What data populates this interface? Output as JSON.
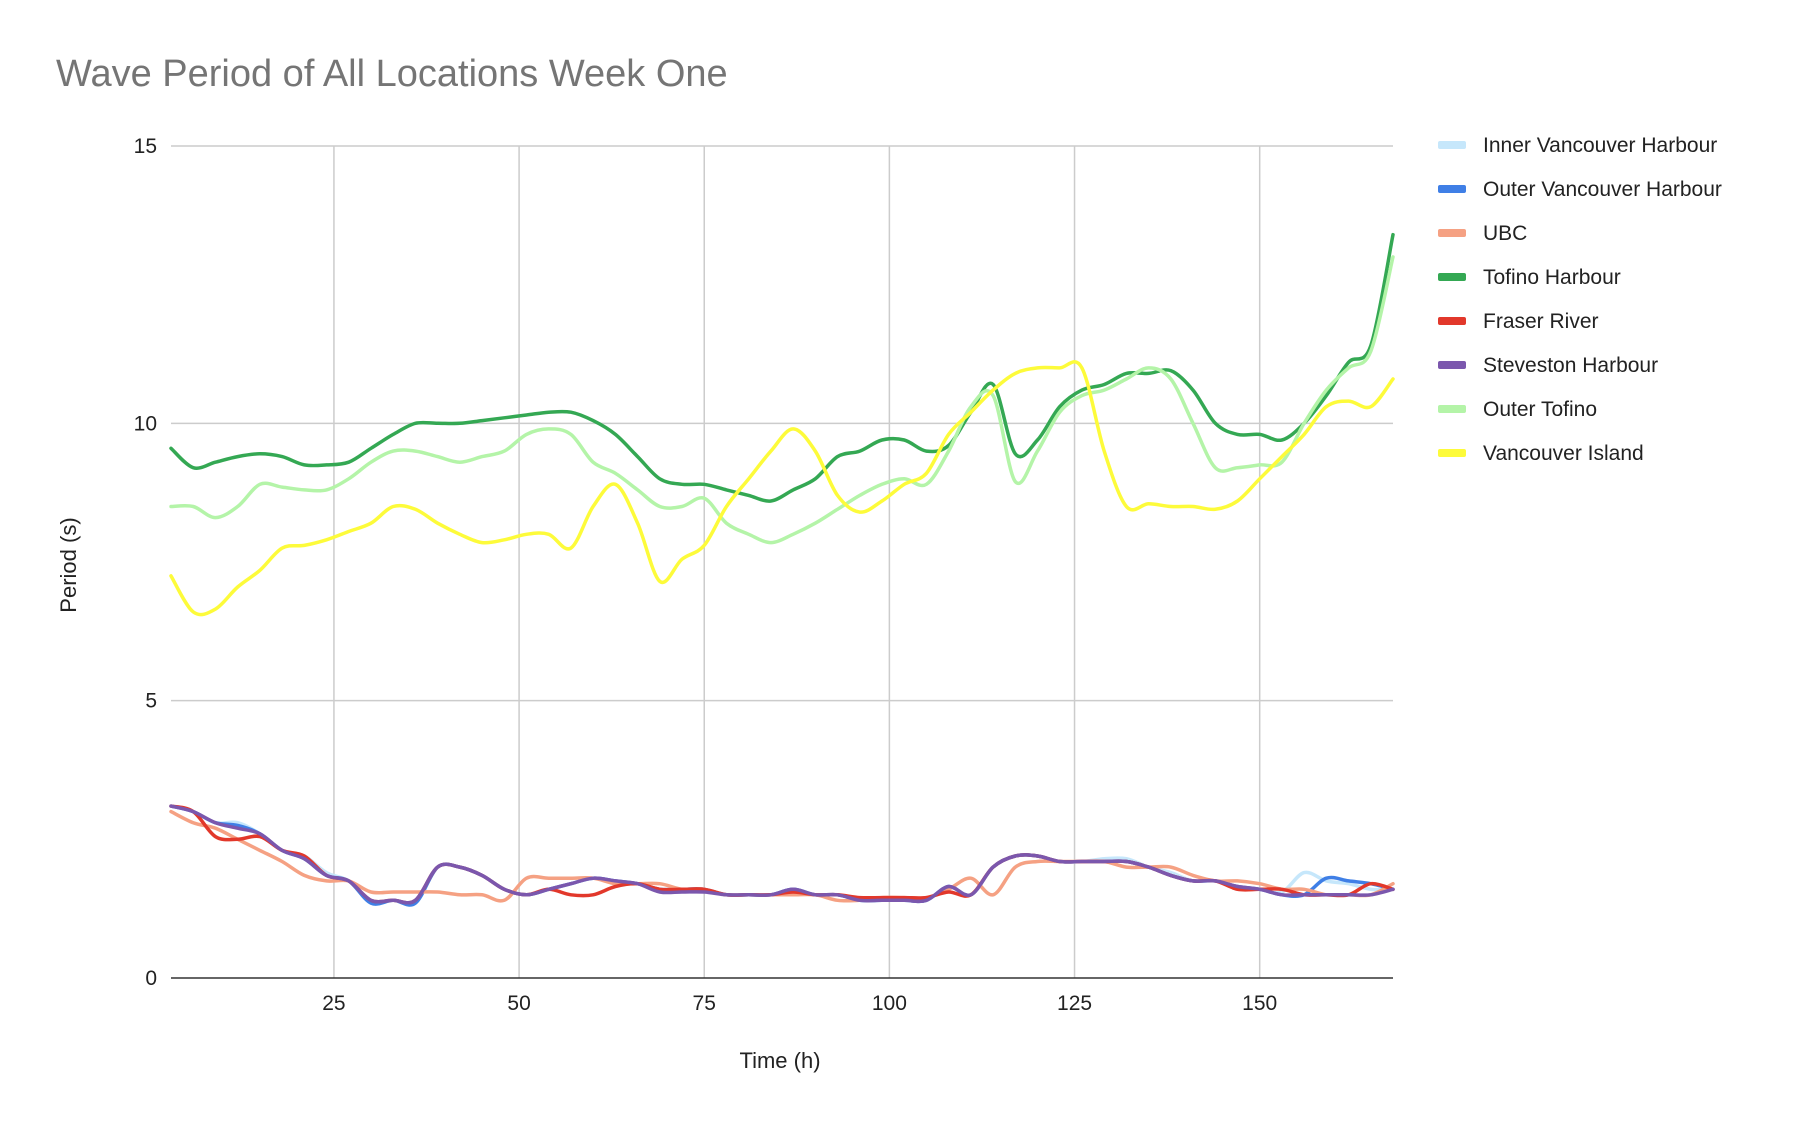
{
  "chart_data": {
    "type": "line",
    "title": "Wave Period of All Locations Week One",
    "xlabel": "Time (h)",
    "ylabel": "Period (s)",
    "xlim": [
      3,
      168
    ],
    "ylim": [
      0,
      15
    ],
    "xticks": [
      25,
      50,
      75,
      100,
      125,
      150
    ],
    "yticks": [
      0,
      5,
      10,
      15
    ],
    "grid": true,
    "legend_position": "right",
    "x": [
      3,
      6,
      9,
      12,
      15,
      18,
      21,
      24,
      27,
      30,
      33,
      36,
      39,
      42,
      45,
      48,
      51,
      54,
      57,
      60,
      63,
      66,
      69,
      72,
      75,
      78,
      81,
      84,
      87,
      90,
      93,
      96,
      99,
      102,
      105,
      108,
      111,
      114,
      117,
      120,
      123,
      126,
      129,
      132,
      135,
      138,
      141,
      144,
      147,
      150,
      153,
      156,
      159,
      162,
      165,
      168
    ],
    "series": [
      {
        "name": "Inner Vancouver Harbour",
        "color": "#c6e7fb",
        "values": [
          3.1,
          3.0,
          2.8,
          2.8,
          2.6,
          2.3,
          2.2,
          1.9,
          1.75,
          1.4,
          1.4,
          1.4,
          2.0,
          2.0,
          1.85,
          1.6,
          1.5,
          1.6,
          1.7,
          1.8,
          1.75,
          1.7,
          1.6,
          1.6,
          1.6,
          1.5,
          1.5,
          1.5,
          1.6,
          1.5,
          1.5,
          1.4,
          1.4,
          1.4,
          1.4,
          1.65,
          1.5,
          2.0,
          2.2,
          2.2,
          2.1,
          2.1,
          2.15,
          2.15,
          2.0,
          1.9,
          1.75,
          1.75,
          1.65,
          1.6,
          1.55,
          1.9,
          1.75,
          1.7,
          1.6,
          1.6
        ]
      },
      {
        "name": "Outer Vancouver Harbour",
        "color": "#3f7fe6",
        "values": [
          3.1,
          3.0,
          2.8,
          2.75,
          2.6,
          2.3,
          2.15,
          1.85,
          1.75,
          1.35,
          1.4,
          1.35,
          2.0,
          2.0,
          1.85,
          1.6,
          1.5,
          1.6,
          1.7,
          1.8,
          1.75,
          1.7,
          1.6,
          1.6,
          1.6,
          1.5,
          1.5,
          1.5,
          1.6,
          1.5,
          1.5,
          1.4,
          1.4,
          1.4,
          1.4,
          1.65,
          1.5,
          2.0,
          2.2,
          2.2,
          2.1,
          2.1,
          2.1,
          2.1,
          2.0,
          1.85,
          1.75,
          1.75,
          1.65,
          1.6,
          1.5,
          1.5,
          1.8,
          1.75,
          1.7,
          1.6
        ]
      },
      {
        "name": "UBC",
        "color": "#f5a183",
        "values": [
          3.0,
          2.8,
          2.7,
          2.5,
          2.3,
          2.1,
          1.85,
          1.75,
          1.75,
          1.55,
          1.55,
          1.55,
          1.55,
          1.5,
          1.5,
          1.4,
          1.8,
          1.8,
          1.8,
          1.8,
          1.7,
          1.7,
          1.7,
          1.6,
          1.6,
          1.5,
          1.5,
          1.5,
          1.5,
          1.5,
          1.4,
          1.4,
          1.45,
          1.45,
          1.45,
          1.6,
          1.8,
          1.5,
          2.0,
          2.1,
          2.1,
          2.1,
          2.1,
          2.0,
          2.0,
          2.0,
          1.85,
          1.75,
          1.75,
          1.7,
          1.6,
          1.6,
          1.5,
          1.5,
          1.5,
          1.7
        ]
      },
      {
        "name": "Tofino Harbour",
        "color": "#34a853",
        "values": [
          9.55,
          9.2,
          9.3,
          9.4,
          9.45,
          9.4,
          9.25,
          9.25,
          9.3,
          9.55,
          9.8,
          10.0,
          10.0,
          10.0,
          10.05,
          10.1,
          10.15,
          10.2,
          10.2,
          10.05,
          9.8,
          9.4,
          9.0,
          8.9,
          8.9,
          8.8,
          8.7,
          8.6,
          8.8,
          9.0,
          9.4,
          9.5,
          9.7,
          9.7,
          9.5,
          9.6,
          10.2,
          10.7,
          9.45,
          9.7,
          10.3,
          10.6,
          10.7,
          10.9,
          10.9,
          10.95,
          10.6,
          10.0,
          9.8,
          9.8,
          9.7,
          10.0,
          10.5,
          11.1,
          11.4,
          13.4
        ]
      },
      {
        "name": "Fraser River",
        "color": "#e2382b",
        "values": [
          3.1,
          3.0,
          2.55,
          2.5,
          2.55,
          2.3,
          2.2,
          1.85,
          1.75,
          1.4,
          1.4,
          1.4,
          2.0,
          2.0,
          1.85,
          1.6,
          1.5,
          1.6,
          1.5,
          1.5,
          1.65,
          1.7,
          1.6,
          1.6,
          1.6,
          1.5,
          1.5,
          1.5,
          1.55,
          1.5,
          1.5,
          1.45,
          1.45,
          1.45,
          1.45,
          1.55,
          1.5,
          2.0,
          2.2,
          2.2,
          2.1,
          2.1,
          2.1,
          2.1,
          2.0,
          1.85,
          1.75,
          1.75,
          1.6,
          1.6,
          1.6,
          1.5,
          1.5,
          1.5,
          1.7,
          1.6
        ]
      },
      {
        "name": "Steveston Harbour",
        "color": "#7b57ad",
        "values": [
          3.1,
          3.0,
          2.8,
          2.7,
          2.6,
          2.3,
          2.15,
          1.85,
          1.75,
          1.4,
          1.4,
          1.4,
          2.0,
          2.0,
          1.85,
          1.6,
          1.5,
          1.6,
          1.7,
          1.8,
          1.75,
          1.7,
          1.55,
          1.55,
          1.55,
          1.5,
          1.5,
          1.5,
          1.6,
          1.5,
          1.5,
          1.4,
          1.4,
          1.4,
          1.4,
          1.65,
          1.5,
          2.0,
          2.2,
          2.2,
          2.1,
          2.1,
          2.1,
          2.1,
          2.0,
          1.85,
          1.75,
          1.75,
          1.65,
          1.6,
          1.5,
          1.5,
          1.5,
          1.5,
          1.5,
          1.6
        ]
      },
      {
        "name": "Outer Tofino",
        "color": "#b4f4a8",
        "values": [
          8.5,
          8.5,
          8.3,
          8.5,
          8.9,
          8.85,
          8.8,
          8.8,
          9.0,
          9.3,
          9.5,
          9.5,
          9.4,
          9.3,
          9.4,
          9.5,
          9.8,
          9.9,
          9.8,
          9.3,
          9.1,
          8.8,
          8.5,
          8.5,
          8.65,
          8.2,
          8.0,
          7.85,
          8.0,
          8.2,
          8.45,
          8.7,
          8.9,
          9.0,
          8.9,
          9.5,
          10.3,
          10.5,
          8.95,
          9.5,
          10.2,
          10.5,
          10.6,
          10.8,
          11.0,
          10.8,
          10.0,
          9.2,
          9.2,
          9.25,
          9.3,
          10.0,
          10.6,
          11.0,
          11.3,
          13.0
        ]
      },
      {
        "name": "Vancouver Island",
        "color": "#fdfb3a",
        "values": [
          7.25,
          6.6,
          6.65,
          7.05,
          7.35,
          7.75,
          7.8,
          7.9,
          8.05,
          8.2,
          8.5,
          8.45,
          8.2,
          8.0,
          7.85,
          7.9,
          8.0,
          8.0,
          7.75,
          8.5,
          8.9,
          8.2,
          7.15,
          7.55,
          7.8,
          8.5,
          9.0,
          9.5,
          9.9,
          9.5,
          8.7,
          8.4,
          8.6,
          8.9,
          9.1,
          9.8,
          10.2,
          10.6,
          10.9,
          11.0,
          11.0,
          11.0,
          9.5,
          8.5,
          8.55,
          8.5,
          8.5,
          8.45,
          8.6,
          9.0,
          9.4,
          9.8,
          10.3,
          10.4,
          10.3,
          10.8
        ]
      }
    ]
  }
}
